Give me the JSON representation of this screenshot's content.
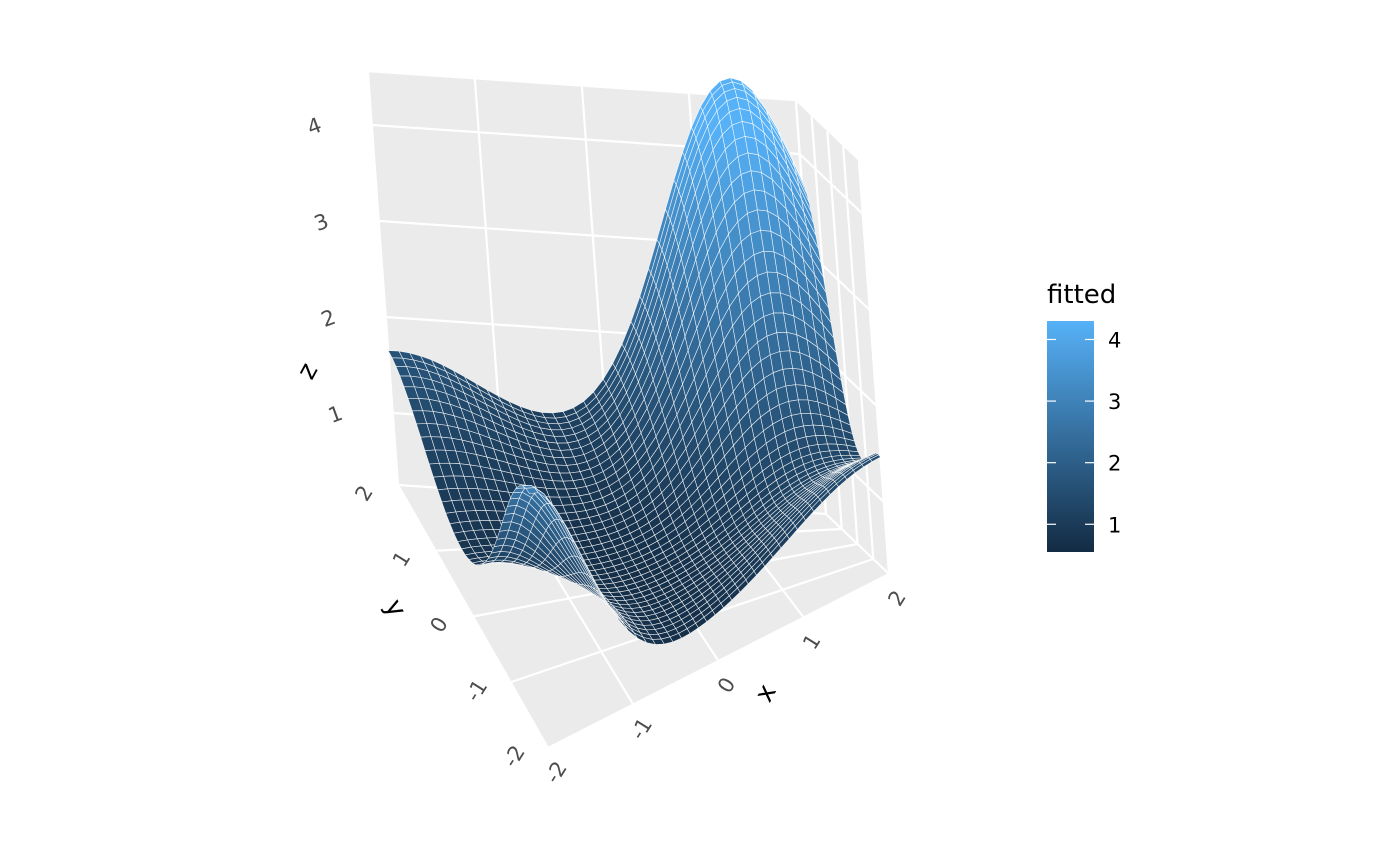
{
  "chart_data": {
    "type": "surface",
    "title": "",
    "x": {
      "label": "x",
      "range": [
        -2,
        2
      ],
      "ticks": [
        "-2",
        "-1",
        "0",
        "1",
        "2"
      ]
    },
    "y": {
      "label": "y",
      "range": [
        -2,
        2
      ],
      "ticks": [
        "-2",
        "-1",
        "0",
        "1",
        "2"
      ]
    },
    "z": {
      "label": "z",
      "range": [
        0.3,
        4.5
      ],
      "ticks": [
        "1",
        "2",
        "3",
        "4"
      ]
    },
    "z_values_grid_note": "fitted surface; corners: (x=-2,y=2) ≈ 2.0, (x=2,y=2) ≈ 4.3 peak near (x=1.3,y=2), (x=-2,y=-2) ≈ 2.8 peak, (x=2,y=-2) ≈ 1.4; minimum ≈ 0.6 near (x=0,y=0.5)",
    "grid": true,
    "legend": {
      "title": "fitted",
      "position": "right",
      "range": [
        0.55,
        4.3
      ],
      "ticks": [
        "1",
        "2",
        "3",
        "4"
      ],
      "colors": [
        "#132b43",
        "#56b1f7"
      ]
    }
  }
}
